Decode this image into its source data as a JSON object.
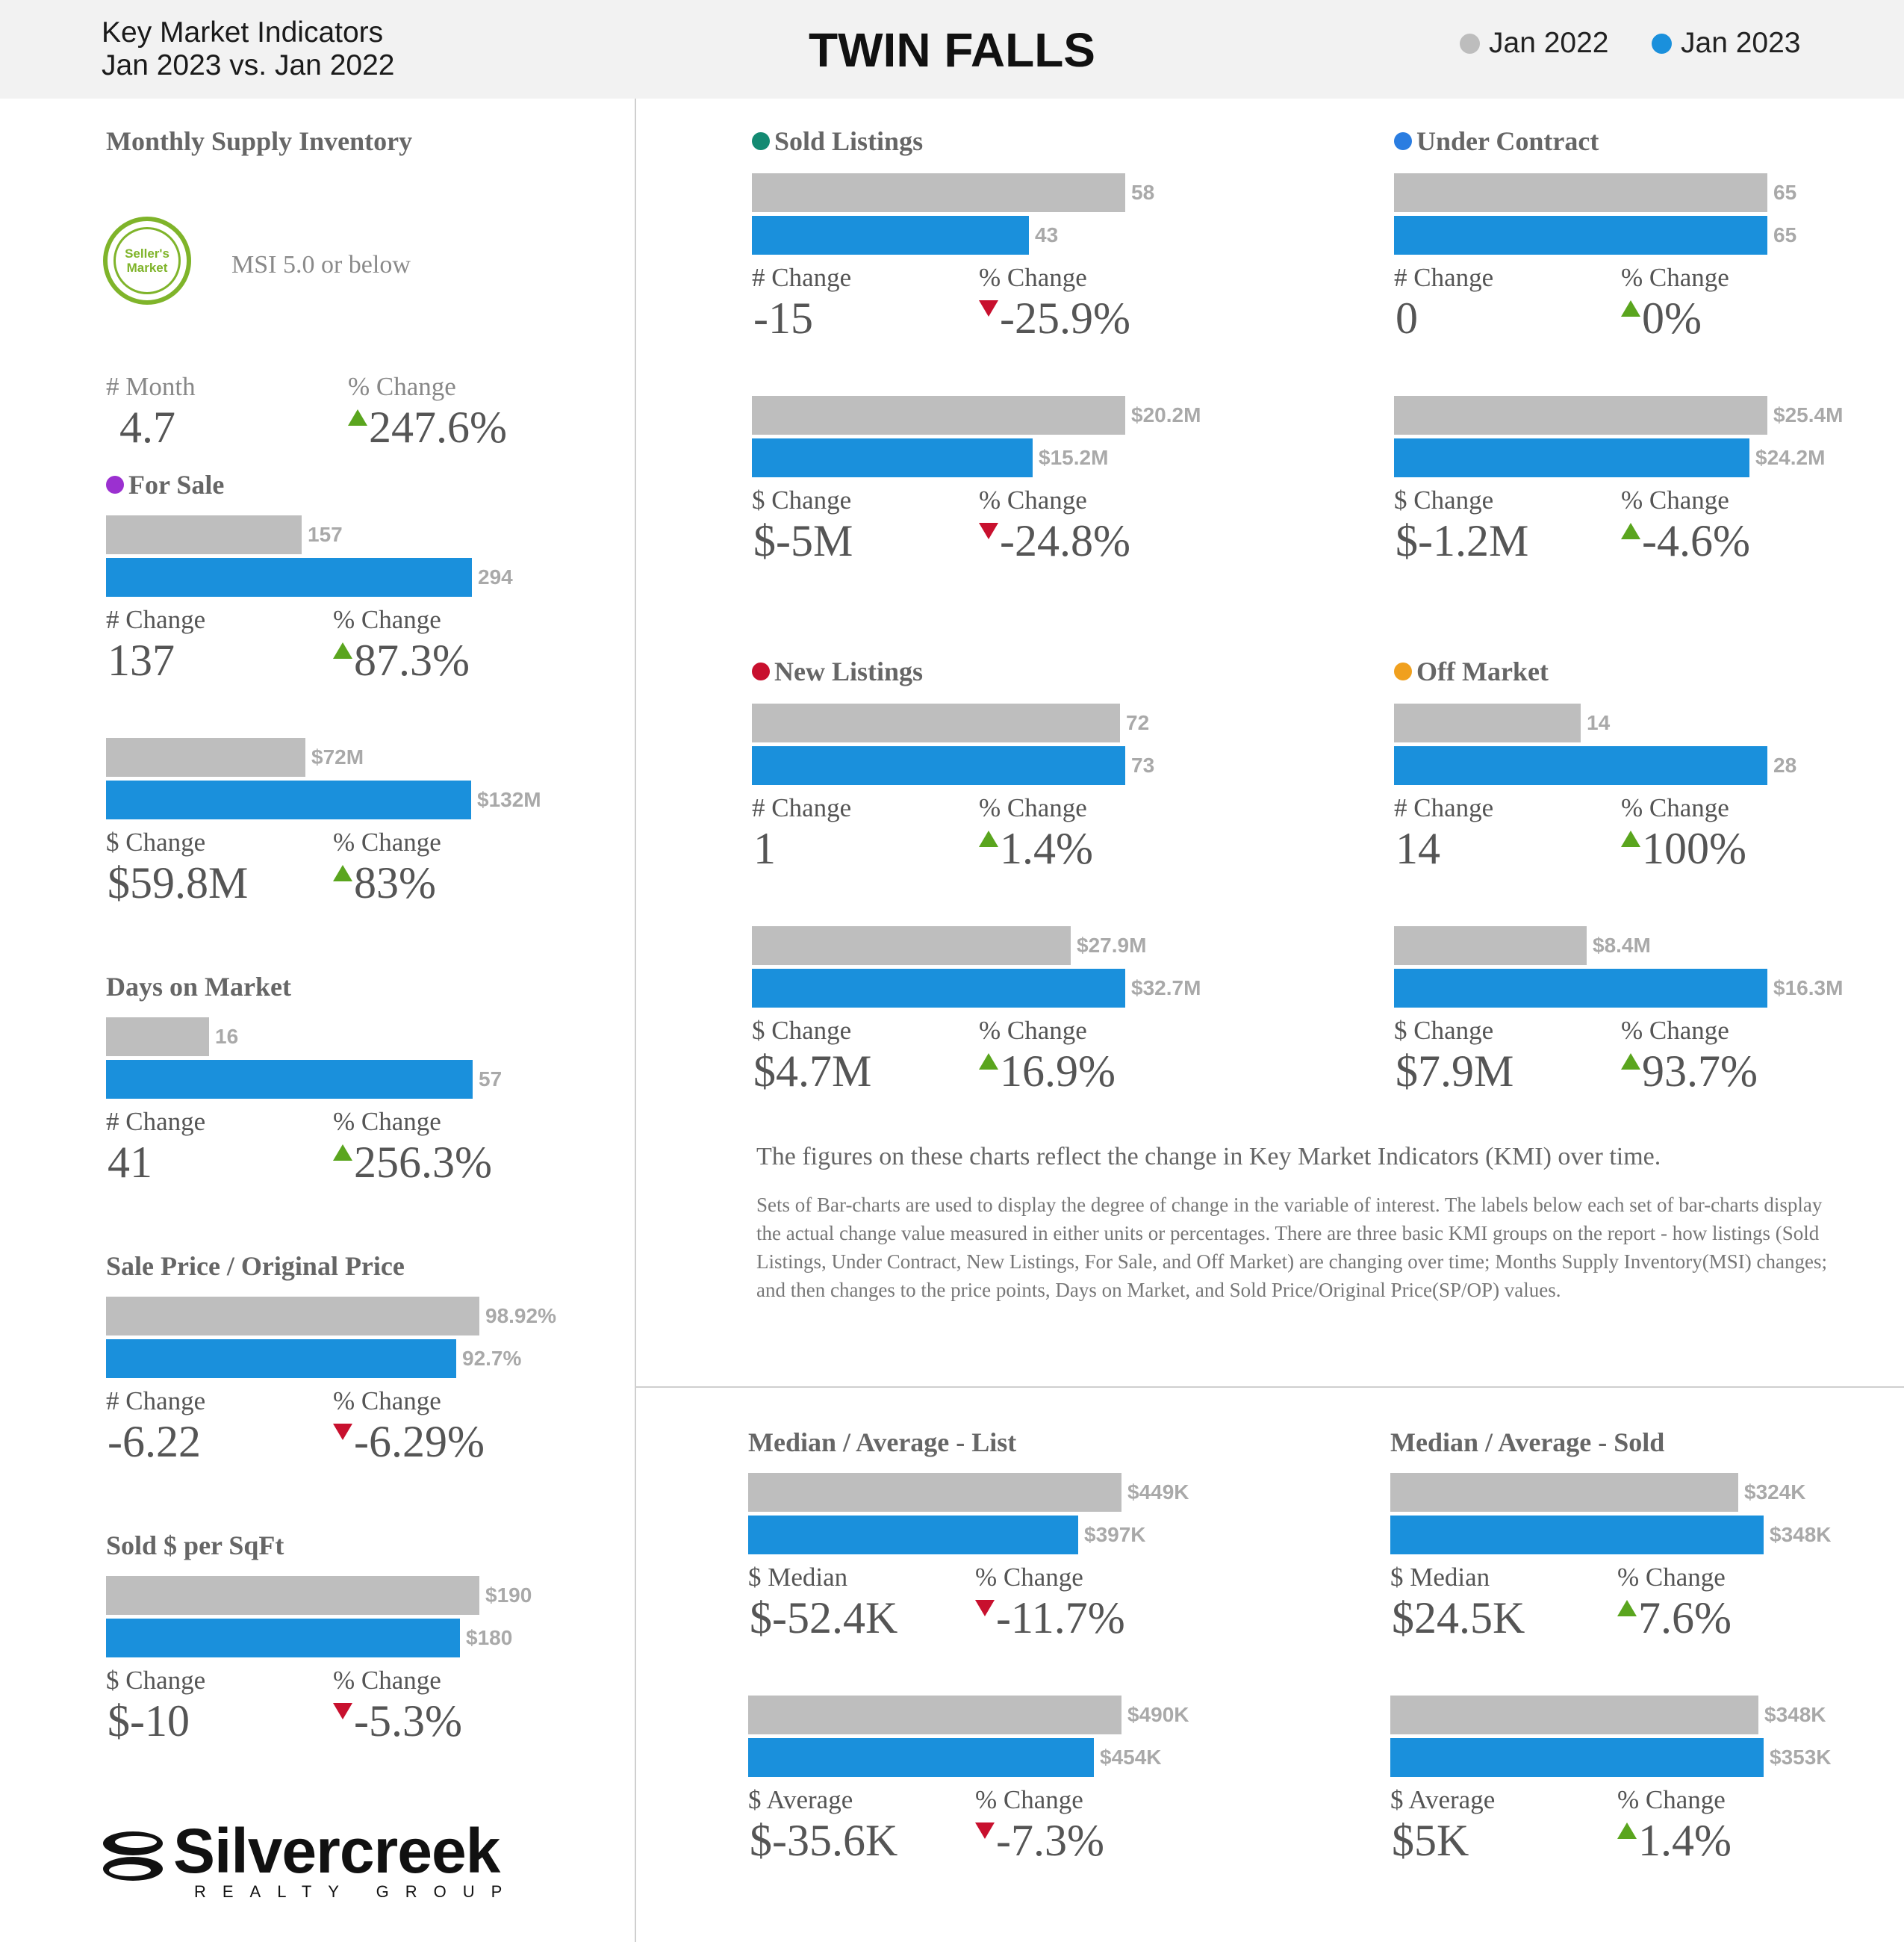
{
  "header": {
    "subtitle_line1": "Key Market Indicators",
    "subtitle_line2": "Jan 2023 vs. Jan 2022",
    "title": "TWIN FALLS",
    "legend": [
      {
        "label": "Jan 2022",
        "color": "#bdbdbd"
      },
      {
        "label": "Jan 2023",
        "color": "#1a90dc"
      }
    ]
  },
  "msi": {
    "title": "Monthly Supply Inventory",
    "badge_line1": "Seller's",
    "badge_line2": "Market",
    "note": "MSI 5.0 or below",
    "label_left": "# Month",
    "value_left": "4.7",
    "label_right": "% Change",
    "value_right": "247.6%",
    "direction": "up"
  },
  "chart_data": [
    {
      "type": "bar",
      "title": "For Sale",
      "dot_color": "#9b30d0",
      "pairs": [
        {
          "scale_max": 300,
          "values": [
            157,
            294
          ],
          "value_labels": [
            "157",
            "294"
          ],
          "label_left": "# Change",
          "value_left": "137",
          "label_right": "% Change",
          "value_right": "87.3%",
          "direction": "up"
        },
        {
          "scale_max": 135,
          "values": [
            72,
            132
          ],
          "value_labels": [
            "$72M",
            "$132M"
          ],
          "label_left": "$ Change",
          "value_left": "$59.8M",
          "label_right": "% Change",
          "value_right": "83%",
          "direction": "up"
        }
      ]
    },
    {
      "type": "bar",
      "title": "Days on Market",
      "dot_color": null,
      "pairs": [
        {
          "scale_max": 58,
          "values": [
            16,
            57
          ],
          "value_labels": [
            "16",
            "57"
          ],
          "label_left": "# Change",
          "value_left": "41",
          "label_right": "% Change",
          "value_right": "256.3%",
          "direction": "up"
        }
      ]
    },
    {
      "type": "bar",
      "title": "Sale Price / Original Price",
      "dot_color": null,
      "pairs": [
        {
          "scale_max": 98.92,
          "values": [
            98.92,
            92.7
          ],
          "value_labels": [
            "98.92%",
            "92.7%"
          ],
          "label_left": "# Change",
          "value_left": "-6.22",
          "label_right": "% Change",
          "value_right": "-6.29%",
          "direction": "down"
        }
      ]
    },
    {
      "type": "bar",
      "title": "Sold $ per SqFt",
      "dot_color": null,
      "pairs": [
        {
          "scale_max": 190,
          "values": [
            190,
            180
          ],
          "value_labels": [
            "$190",
            "$180"
          ],
          "label_left": "$ Change",
          "value_left": "$-10",
          "label_right": "% Change",
          "value_right": "-5.3%",
          "direction": "down"
        }
      ]
    },
    {
      "type": "bar",
      "title": "Sold Listings",
      "dot_color": "#138a72",
      "pairs": [
        {
          "scale_max": 58,
          "values": [
            58,
            43
          ],
          "value_labels": [
            "58",
            "43"
          ],
          "label_left": "# Change",
          "value_left": "-15",
          "label_right": "% Change",
          "value_right": "-25.9%",
          "direction": "down"
        },
        {
          "scale_max": 20.2,
          "values": [
            20.2,
            15.2
          ],
          "value_labels": [
            "$20.2M",
            "$15.2M"
          ],
          "label_left": "$ Change",
          "value_left": "$-5M",
          "label_right": "% Change",
          "value_right": "-24.8%",
          "direction": "down"
        }
      ]
    },
    {
      "type": "bar",
      "title": "Under Contract",
      "dot_color": "#2a7de1",
      "pairs": [
        {
          "scale_max": 65,
          "values": [
            65,
            65
          ],
          "value_labels": [
            "65",
            "65"
          ],
          "label_left": "# Change",
          "value_left": "0",
          "label_right": "% Change",
          "value_right": "0%",
          "direction": "up"
        },
        {
          "scale_max": 25.4,
          "values": [
            25.4,
            24.2
          ],
          "value_labels": [
            "$25.4M",
            "$24.2M"
          ],
          "label_left": "$ Change",
          "value_left": "$-1.2M",
          "label_right": "% Change",
          "value_right": "-4.6%",
          "direction": "up"
        }
      ]
    },
    {
      "type": "bar",
      "title": "New Listings",
      "dot_color": "#c8102e",
      "pairs": [
        {
          "scale_max": 73,
          "values": [
            72,
            73
          ],
          "value_labels": [
            "72",
            "73"
          ],
          "label_left": "# Change",
          "value_left": "1",
          "label_right": "% Change",
          "value_right": "1.4%",
          "direction": "up"
        },
        {
          "scale_max": 32.7,
          "values": [
            27.9,
            32.7
          ],
          "value_labels": [
            "$27.9M",
            "$32.7M"
          ],
          "label_left": "$ Change",
          "value_left": "$4.7M",
          "label_right": "% Change",
          "value_right": "16.9%",
          "direction": "up"
        }
      ]
    },
    {
      "type": "bar",
      "title": "Off Market",
      "dot_color": "#f0a01e",
      "pairs": [
        {
          "scale_max": 28,
          "values": [
            14,
            28
          ],
          "value_labels": [
            "14",
            "28"
          ],
          "label_left": "# Change",
          "value_left": "14",
          "label_right": "% Change",
          "value_right": "100%",
          "direction": "up"
        },
        {
          "scale_max": 16.3,
          "values": [
            8.4,
            16.3
          ],
          "value_labels": [
            "$8.4M",
            "$16.3M"
          ],
          "label_left": "$ Change",
          "value_left": "$7.9M",
          "label_right": "% Change",
          "value_right": "93.7%",
          "direction": "up"
        }
      ]
    },
    {
      "type": "bar",
      "title": "Median / Average - List",
      "dot_color": null,
      "pairs": [
        {
          "scale_max": 449,
          "values": [
            449,
            397
          ],
          "value_labels": [
            "$449K",
            "$397K"
          ],
          "label_left": "$ Median",
          "value_left": "$-52.4K",
          "label_right": "% Change",
          "value_right": "-11.7%",
          "direction": "down"
        },
        {
          "scale_max": 490,
          "values": [
            490,
            454
          ],
          "value_labels": [
            "$490K",
            "$454K"
          ],
          "label_left": "$ Average",
          "value_left": "$-35.6K",
          "label_right": "% Change",
          "value_right": "-7.3%",
          "direction": "down"
        }
      ]
    },
    {
      "type": "bar",
      "title": "Median / Average - Sold",
      "dot_color": null,
      "pairs": [
        {
          "scale_max": 348,
          "values": [
            324,
            348
          ],
          "value_labels": [
            "$324K",
            "$348K"
          ],
          "label_left": "$ Median",
          "value_left": "$24.5K",
          "label_right": "% Change",
          "value_right": "7.6%",
          "direction": "up"
        },
        {
          "scale_max": 353,
          "values": [
            348,
            353
          ],
          "value_labels": [
            "$348K",
            "$353K"
          ],
          "label_left": "$ Average",
          "value_left": "$5K",
          "label_right": "% Change",
          "value_right": "1.4%",
          "direction": "up"
        }
      ]
    }
  ],
  "explanation": {
    "line1": "The figures on these charts reflect the change in Key Market Indicators (KMI) over time.",
    "line2": "Sets of Bar-charts are used to display the degree of change in the variable of interest. The labels below each set of bar-charts display the actual change value measured in either units or percentages. There are three basic KMI groups on the report - how listings (Sold Listings, Under Contract, New Listings, For Sale, and Off Market) are changing over time; Months Supply Inventory(MSI) changes; and then changes to the price points, Days on Market, and Sold Price/Original Price(SP/OP) values."
  },
  "brand": {
    "name": "Silvercreek",
    "tagline": "REALTY GROUP"
  }
}
